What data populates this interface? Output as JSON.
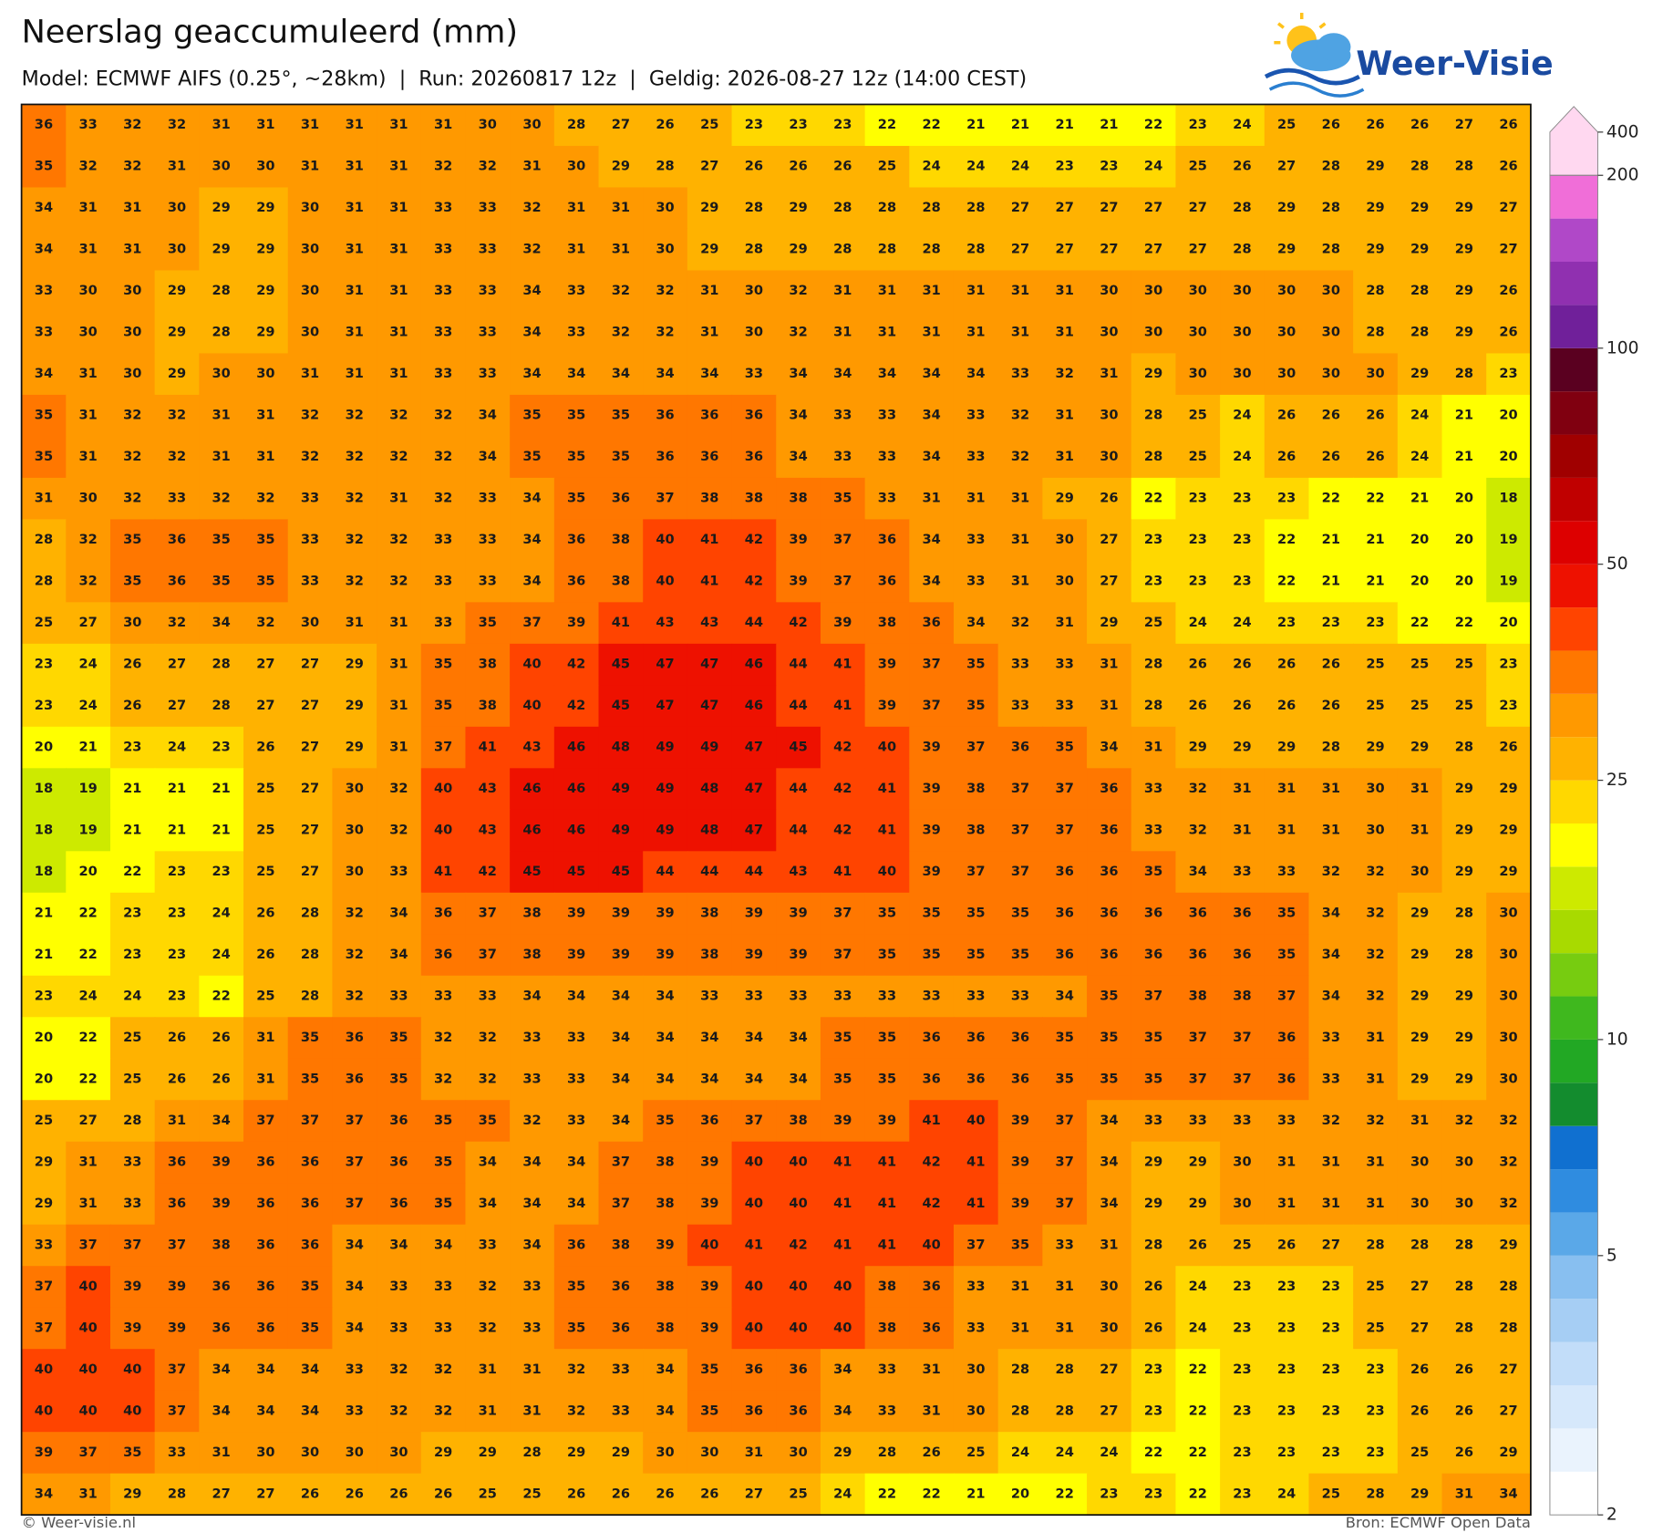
{
  "header": {
    "title": "Neerslag geaccumuleerd (mm)",
    "subtitle": "Model: ECMWF AIFS (0.25°, ~28km)  |  Run: 20260817 12z  |  Geldig: 2026-08-27 12z (14:00 CEST)",
    "logo": "Weer-Visie"
  },
  "map": {
    "values": [
      [
        36,
        33,
        32,
        32,
        31,
        31,
        31,
        31,
        31,
        31,
        30,
        30,
        28,
        27,
        26,
        25,
        23,
        23,
        23,
        22,
        22,
        21,
        21,
        21,
        21,
        22,
        23,
        24,
        25,
        26,
        26,
        26,
        27,
        26
      ],
      [
        35,
        32,
        32,
        31,
        30,
        30,
        31,
        31,
        31,
        32,
        32,
        31,
        30,
        29,
        28,
        27,
        26,
        26,
        26,
        25,
        24,
        24,
        24,
        23,
        23,
        24,
        25,
        26,
        27,
        28,
        29,
        28,
        28,
        26
      ],
      [
        34,
        31,
        31,
        30,
        29,
        29,
        30,
        31,
        31,
        33,
        33,
        32,
        31,
        31,
        30,
        29,
        28,
        29,
        28,
        28,
        28,
        28,
        27,
        27,
        27,
        27,
        27,
        28,
        29,
        28,
        29,
        29,
        29,
        27
      ],
      [
        34,
        31,
        31,
        30,
        29,
        29,
        30,
        31,
        31,
        33,
        33,
        32,
        31,
        31,
        30,
        29,
        28,
        29,
        28,
        28,
        28,
        28,
        27,
        27,
        27,
        27,
        27,
        28,
        29,
        28,
        29,
        29,
        29,
        27
      ],
      [
        33,
        30,
        30,
        29,
        28,
        29,
        30,
        31,
        31,
        33,
        33,
        34,
        33,
        32,
        32,
        31,
        30,
        32,
        31,
        31,
        31,
        31,
        31,
        31,
        30,
        30,
        30,
        30,
        30,
        30,
        28,
        28,
        29,
        26
      ],
      [
        33,
        30,
        30,
        29,
        28,
        29,
        30,
        31,
        31,
        33,
        33,
        34,
        33,
        32,
        32,
        31,
        30,
        32,
        31,
        31,
        31,
        31,
        31,
        31,
        30,
        30,
        30,
        30,
        30,
        30,
        28,
        28,
        29,
        26
      ],
      [
        34,
        31,
        30,
        29,
        30,
        30,
        31,
        31,
        31,
        33,
        33,
        34,
        34,
        34,
        34,
        34,
        33,
        34,
        34,
        34,
        34,
        34,
        33,
        32,
        31,
        29,
        30,
        30,
        30,
        30,
        30,
        29,
        28,
        23
      ],
      [
        35,
        31,
        32,
        32,
        31,
        31,
        32,
        32,
        32,
        32,
        34,
        35,
        35,
        35,
        36,
        36,
        36,
        34,
        33,
        33,
        34,
        33,
        32,
        31,
        30,
        28,
        25,
        24,
        26,
        26,
        26,
        24,
        21,
        20
      ],
      [
        35,
        31,
        32,
        32,
        31,
        31,
        32,
        32,
        32,
        32,
        34,
        35,
        35,
        35,
        36,
        36,
        36,
        34,
        33,
        33,
        34,
        33,
        32,
        31,
        30,
        28,
        25,
        24,
        26,
        26,
        26,
        24,
        21,
        20
      ],
      [
        31,
        30,
        32,
        33,
        32,
        32,
        33,
        32,
        31,
        32,
        33,
        34,
        35,
        36,
        37,
        38,
        38,
        38,
        35,
        33,
        31,
        31,
        31,
        29,
        26,
        22,
        23,
        23,
        23,
        22,
        22,
        21,
        20,
        18
      ],
      [
        28,
        32,
        35,
        36,
        35,
        35,
        33,
        32,
        32,
        33,
        33,
        34,
        36,
        38,
        40,
        41,
        42,
        39,
        37,
        36,
        34,
        33,
        31,
        30,
        27,
        23,
        23,
        23,
        22,
        21,
        21,
        20,
        20,
        19
      ],
      [
        28,
        32,
        35,
        36,
        35,
        35,
        33,
        32,
        32,
        33,
        33,
        34,
        36,
        38,
        40,
        41,
        42,
        39,
        37,
        36,
        34,
        33,
        31,
        30,
        27,
        23,
        23,
        23,
        22,
        21,
        21,
        20,
        20,
        19
      ],
      [
        25,
        27,
        30,
        32,
        34,
        32,
        30,
        31,
        31,
        33,
        35,
        37,
        39,
        41,
        43,
        43,
        44,
        42,
        39,
        38,
        36,
        34,
        32,
        31,
        29,
        25,
        24,
        24,
        23,
        23,
        23,
        22,
        22,
        20
      ],
      [
        23,
        24,
        26,
        27,
        28,
        27,
        27,
        29,
        31,
        35,
        38,
        40,
        42,
        45,
        47,
        47,
        46,
        44,
        41,
        39,
        37,
        35,
        33,
        33,
        31,
        28,
        26,
        26,
        26,
        26,
        25,
        25,
        25,
        23
      ],
      [
        23,
        24,
        26,
        27,
        28,
        27,
        27,
        29,
        31,
        35,
        38,
        40,
        42,
        45,
        47,
        47,
        46,
        44,
        41,
        39,
        37,
        35,
        33,
        33,
        31,
        28,
        26,
        26,
        26,
        26,
        25,
        25,
        25,
        23
      ],
      [
        20,
        21,
        23,
        24,
        23,
        26,
        27,
        29,
        31,
        37,
        41,
        43,
        46,
        48,
        49,
        49,
        47,
        45,
        42,
        40,
        39,
        37,
        36,
        35,
        34,
        31,
        29,
        29,
        29,
        28,
        29,
        29,
        28,
        26
      ],
      [
        18,
        19,
        21,
        21,
        21,
        25,
        27,
        30,
        32,
        40,
        43,
        46,
        46,
        49,
        49,
        48,
        47,
        44,
        42,
        41,
        39,
        38,
        37,
        37,
        36,
        33,
        32,
        31,
        31,
        31,
        30,
        31,
        29,
        29
      ],
      [
        18,
        19,
        21,
        21,
        21,
        25,
        27,
        30,
        32,
        40,
        43,
        46,
        46,
        49,
        49,
        48,
        47,
        44,
        42,
        41,
        39,
        38,
        37,
        37,
        36,
        33,
        32,
        31,
        31,
        31,
        30,
        31,
        29,
        29
      ],
      [
        18,
        20,
        22,
        23,
        23,
        25,
        27,
        30,
        33,
        41,
        42,
        45,
        45,
        45,
        44,
        44,
        44,
        43,
        41,
        40,
        39,
        37,
        37,
        36,
        36,
        35,
        34,
        33,
        33,
        32,
        32,
        30,
        29,
        29
      ],
      [
        21,
        22,
        23,
        23,
        24,
        26,
        28,
        32,
        34,
        36,
        37,
        38,
        39,
        39,
        39,
        38,
        39,
        39,
        37,
        35,
        35,
        35,
        35,
        36,
        36,
        36,
        36,
        36,
        35,
        34,
        32,
        29,
        28,
        30
      ],
      [
        21,
        22,
        23,
        23,
        24,
        26,
        28,
        32,
        34,
        36,
        37,
        38,
        39,
        39,
        39,
        38,
        39,
        39,
        37,
        35,
        35,
        35,
        35,
        36,
        36,
        36,
        36,
        36,
        35,
        34,
        32,
        29,
        28,
        30
      ],
      [
        23,
        24,
        24,
        23,
        22,
        25,
        28,
        32,
        33,
        33,
        33,
        34,
        34,
        34,
        34,
        33,
        33,
        33,
        33,
        33,
        33,
        33,
        33,
        34,
        35,
        37,
        38,
        38,
        37,
        34,
        32,
        29,
        29,
        30
      ],
      [
        20,
        22,
        25,
        26,
        26,
        31,
        35,
        36,
        35,
        32,
        32,
        33,
        33,
        34,
        34,
        34,
        34,
        34,
        35,
        35,
        36,
        36,
        36,
        35,
        35,
        35,
        37,
        37,
        36,
        33,
        31,
        29,
        29,
        30
      ],
      [
        20,
        22,
        25,
        26,
        26,
        31,
        35,
        36,
        35,
        32,
        32,
        33,
        33,
        34,
        34,
        34,
        34,
        34,
        35,
        35,
        36,
        36,
        36,
        35,
        35,
        35,
        37,
        37,
        36,
        33,
        31,
        29,
        29,
        30
      ],
      [
        25,
        27,
        28,
        31,
        34,
        37,
        37,
        37,
        36,
        35,
        35,
        32,
        33,
        34,
        35,
        36,
        37,
        38,
        39,
        39,
        41,
        40,
        39,
        37,
        34,
        33,
        33,
        33,
        33,
        32,
        32,
        31,
        32,
        32
      ],
      [
        29,
        31,
        33,
        36,
        39,
        36,
        36,
        37,
        36,
        35,
        34,
        34,
        34,
        37,
        38,
        39,
        40,
        40,
        41,
        41,
        42,
        41,
        39,
        37,
        34,
        29,
        29,
        30,
        31,
        31,
        31,
        30,
        30,
        32
      ],
      [
        29,
        31,
        33,
        36,
        39,
        36,
        36,
        37,
        36,
        35,
        34,
        34,
        34,
        37,
        38,
        39,
        40,
        40,
        41,
        41,
        42,
        41,
        39,
        37,
        34,
        29,
        29,
        30,
        31,
        31,
        31,
        30,
        30,
        32
      ],
      [
        33,
        37,
        37,
        37,
        38,
        36,
        36,
        34,
        34,
        34,
        33,
        34,
        36,
        38,
        39,
        40,
        41,
        42,
        41,
        41,
        40,
        37,
        35,
        33,
        31,
        28,
        26,
        25,
        26,
        27,
        28,
        28,
        28,
        29
      ],
      [
        37,
        40,
        39,
        39,
        36,
        36,
        35,
        34,
        33,
        33,
        32,
        33,
        35,
        36,
        38,
        39,
        40,
        40,
        40,
        38,
        36,
        33,
        31,
        31,
        30,
        26,
        24,
        23,
        23,
        23,
        25,
        27,
        28,
        28
      ],
      [
        37,
        40,
        39,
        39,
        36,
        36,
        35,
        34,
        33,
        33,
        32,
        33,
        35,
        36,
        38,
        39,
        40,
        40,
        40,
        38,
        36,
        33,
        31,
        31,
        30,
        26,
        24,
        23,
        23,
        23,
        25,
        27,
        28,
        28
      ],
      [
        40,
        40,
        40,
        37,
        34,
        34,
        34,
        33,
        32,
        32,
        31,
        31,
        32,
        33,
        34,
        35,
        36,
        36,
        34,
        33,
        31,
        30,
        28,
        28,
        27,
        23,
        22,
        23,
        23,
        23,
        23,
        26,
        26,
        27
      ],
      [
        40,
        40,
        40,
        37,
        34,
        34,
        34,
        33,
        32,
        32,
        31,
        31,
        32,
        33,
        34,
        35,
        36,
        36,
        34,
        33,
        31,
        30,
        28,
        28,
        27,
        23,
        22,
        23,
        23,
        23,
        23,
        26,
        26,
        27
      ],
      [
        39,
        37,
        35,
        33,
        31,
        30,
        30,
        30,
        30,
        29,
        29,
        28,
        29,
        29,
        30,
        30,
        31,
        30,
        29,
        28,
        26,
        25,
        24,
        24,
        24,
        22,
        22,
        23,
        23,
        23,
        23,
        25,
        26,
        29
      ],
      [
        34,
        31,
        29,
        28,
        27,
        27,
        26,
        26,
        26,
        26,
        25,
        25,
        26,
        26,
        26,
        26,
        27,
        25,
        24,
        22,
        22,
        21,
        20,
        22,
        23,
        23,
        22,
        23,
        24,
        25,
        28,
        29,
        31,
        34
      ]
    ]
  },
  "colorbar": {
    "levels": [
      2,
      2.5,
      3,
      3.5,
      4,
      4.5,
      5,
      6,
      7,
      8,
      9,
      10,
      12.5,
      15,
      17.5,
      20,
      22.5,
      25,
      30,
      35,
      40,
      45,
      50,
      60,
      70,
      80,
      90,
      100,
      125,
      150,
      175,
      200,
      400
    ],
    "colors": [
      "#ffffff",
      "#eaf3fd",
      "#d6e8fb",
      "#c2ddf9",
      "#a6cef4",
      "#88bff0",
      "#5aa8e8",
      "#2f8ce0",
      "#1070d0",
      "#138c2e",
      "#22a824",
      "#3fb81e",
      "#77cc10",
      "#a8da00",
      "#cdea00",
      "#ffff00",
      "#ffd800",
      "#ffb200",
      "#ff9900",
      "#ff7700",
      "#ff4400",
      "#ee1100",
      "#dd0000",
      "#c00000",
      "#a00000",
      "#800010",
      "#5a0020",
      "#70209a",
      "#9030b0",
      "#b048c8",
      "#f06ed8",
      "#ffd8f0"
    ],
    "ticks": [
      2,
      5,
      10,
      25,
      50,
      100,
      200,
      400
    ]
  },
  "footer": {
    "left": "© Weer-visie.nl",
    "right": "Bron: ECMWF Open Data"
  }
}
